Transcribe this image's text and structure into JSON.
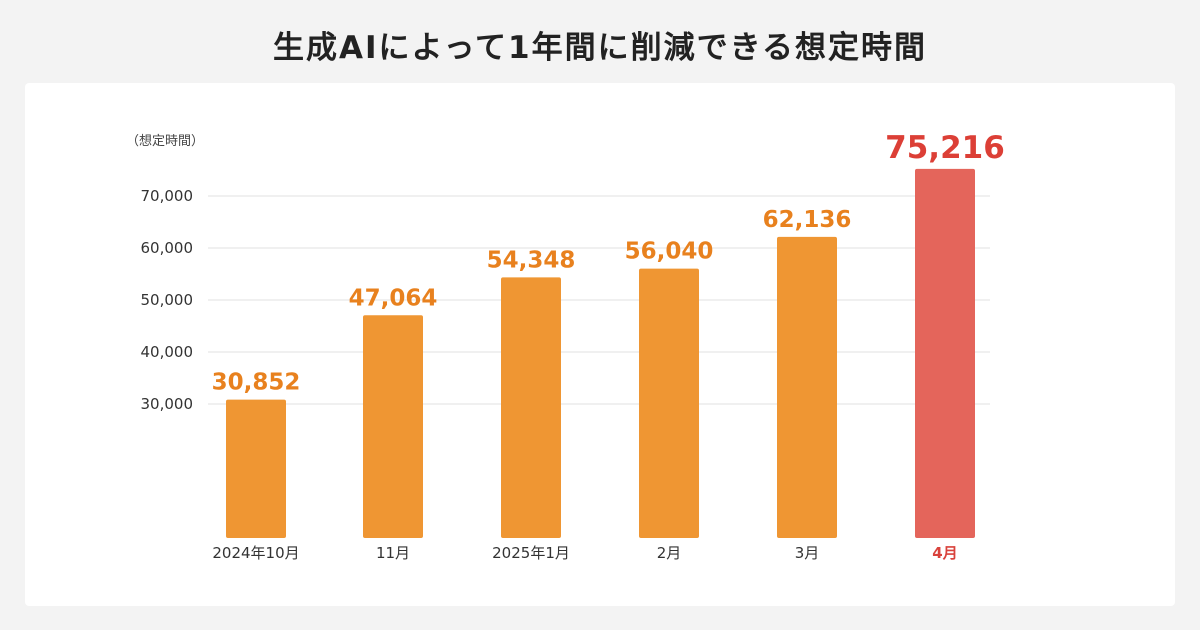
{
  "title": "生成AIによって1年間に削減できる想定時間",
  "chart_data": {
    "type": "bar",
    "ylabel": "（想定時間）",
    "categories": [
      "2024年10月",
      "11月",
      "2025年1月",
      "2月",
      "3月",
      "4月"
    ],
    "values": [
      30852,
      47064,
      54348,
      56040,
      62136,
      75216
    ],
    "value_labels": [
      "30,852",
      "47,064",
      "54,348",
      "56,040",
      "62,136",
      "75,216"
    ],
    "yticks": [
      30000,
      40000,
      50000,
      60000,
      70000
    ],
    "ytick_labels": [
      "30,000",
      "40,000",
      "50,000",
      "60,000",
      "70,000"
    ],
    "grid": true,
    "highlight_index": 5,
    "colors": {
      "bar": "#ef9633",
      "highlight_bar": "#e4655b",
      "value_label": "#e8811e",
      "highlight_label": "#dc3f36"
    }
  }
}
